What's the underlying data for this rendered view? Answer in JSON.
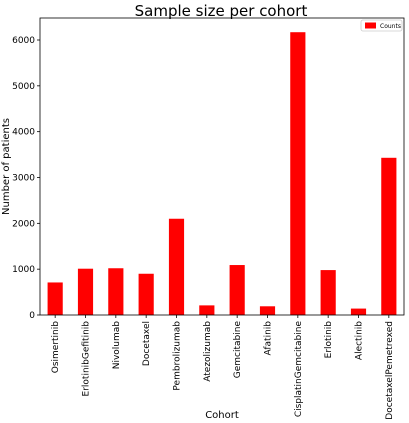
{
  "chart_data": {
    "type": "bar",
    "title": "Sample size per cohort",
    "xlabel": "Cohort",
    "ylabel": "Number of patients",
    "categories": [
      "Osimertinib",
      "ErlotinibGefitinib",
      "Nivolumab",
      "Docetaxel",
      "Pembrolizumab",
      "Atezolizumab",
      "Gemcitabine",
      "Afatinib",
      "CisplatinGemcitabine",
      "Erlotinib",
      "Alectinib",
      "DocetaxelPemetrexed"
    ],
    "series": [
      {
        "name": "Counts",
        "values": [
          710,
          1010,
          1020,
          900,
          2100,
          210,
          1090,
          190,
          6170,
          980,
          140,
          3430
        ],
        "color": "#ff0000"
      }
    ],
    "ylim": [
      0,
      6480
    ],
    "yticks": [
      0,
      1000,
      2000,
      3000,
      4000,
      5000,
      6000
    ],
    "grid": false,
    "legend_position": "top-right"
  }
}
